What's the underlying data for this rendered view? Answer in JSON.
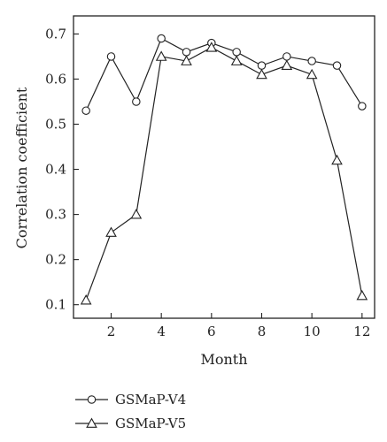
{
  "chart_data": {
    "type": "line",
    "xlabel": "Month",
    "ylabel": "Correlation coefficient",
    "xlim": [
      0.5,
      12.5
    ],
    "ylim": [
      0.07,
      0.74
    ],
    "x_ticks": [
      2,
      4,
      6,
      8,
      10,
      12
    ],
    "y_ticks": [
      0.1,
      0.2,
      0.3,
      0.4,
      0.5,
      0.6,
      0.7
    ],
    "grid": false,
    "legend_position": "bottom-left",
    "x": [
      1,
      2,
      3,
      4,
      5,
      6,
      7,
      8,
      9,
      10,
      11,
      12
    ],
    "series": [
      {
        "name": "GSMaP-V4",
        "marker": "circle",
        "color": "#222222",
        "values": [
          0.53,
          0.65,
          0.55,
          0.69,
          0.66,
          0.68,
          0.66,
          0.63,
          0.65,
          0.64,
          0.63,
          0.54
        ]
      },
      {
        "name": "GSMaP-V5",
        "marker": "triangle",
        "color": "#222222",
        "values": [
          0.11,
          0.26,
          0.3,
          0.65,
          0.64,
          0.67,
          0.64,
          0.61,
          0.63,
          0.61,
          0.42,
          0.12
        ]
      }
    ]
  }
}
